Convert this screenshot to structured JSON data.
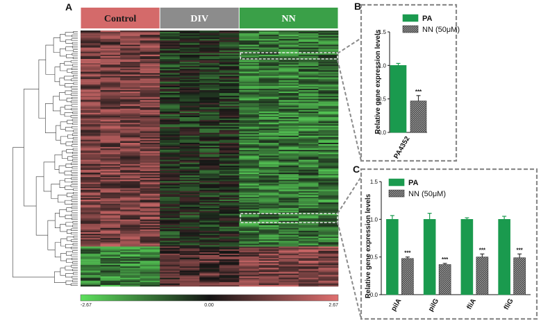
{
  "chart_data": [
    {
      "id": "A",
      "type": "heatmap",
      "panel_label": "A",
      "groups": [
        {
          "name": "Control",
          "color": "#d46a6a",
          "text_color": "#1a1a1a",
          "columns": 4
        },
        {
          "name": "DIV",
          "color": "#8c8c8c",
          "text_color": "#ffffff",
          "columns": 4
        },
        {
          "name": "NN",
          "color": "#3aa048",
          "text_color": "#ffffff",
          "columns": 5
        }
      ],
      "color_scale": {
        "min": -2.67,
        "mid": 0.0,
        "max": 2.67,
        "min_label": "-2.67",
        "mid_label": "0.00",
        "max_label": "2.67",
        "low_color": "#5de05d",
        "mid_color": "#141414",
        "high_color": "#e07070"
      },
      "dendrogram": true
    },
    {
      "id": "B",
      "type": "bar",
      "panel_label": "B",
      "ylabel": "Relative gene expression levels",
      "ylim": [
        0.0,
        1.5
      ],
      "yticks": [
        "0.0",
        "0.5",
        "1.0",
        "1.5"
      ],
      "categories": [
        "PA4352"
      ],
      "series": [
        {
          "name": "PA",
          "color": "#1a9a4e",
          "values": [
            1.0
          ],
          "errors": [
            0.03
          ]
        },
        {
          "name": "NN (50μM)",
          "color": "#555555",
          "values": [
            0.47
          ],
          "errors": [
            0.08
          ]
        }
      ],
      "significance": [
        "***"
      ]
    },
    {
      "id": "C",
      "type": "bar",
      "panel_label": "C",
      "ylabel": "Relative gene expression levels",
      "ylim": [
        0.0,
        1.5
      ],
      "yticks": [
        "0.0",
        "0.5",
        "1.0",
        "1.5"
      ],
      "categories": [
        "pilA",
        "pilG",
        "fliA",
        "fliG"
      ],
      "series": [
        {
          "name": "PA",
          "color": "#1a9a4e",
          "values": [
            1.0,
            1.0,
            1.0,
            1.0
          ],
          "errors": [
            0.05,
            0.08,
            0.02,
            0.04
          ]
        },
        {
          "name": "NN (50μM)",
          "color": "#555555",
          "values": [
            0.48,
            0.4,
            0.5,
            0.49
          ],
          "errors": [
            0.02,
            0.015,
            0.04,
            0.05
          ]
        }
      ],
      "significance": [
        "***",
        "***",
        "***",
        "***"
      ]
    }
  ]
}
